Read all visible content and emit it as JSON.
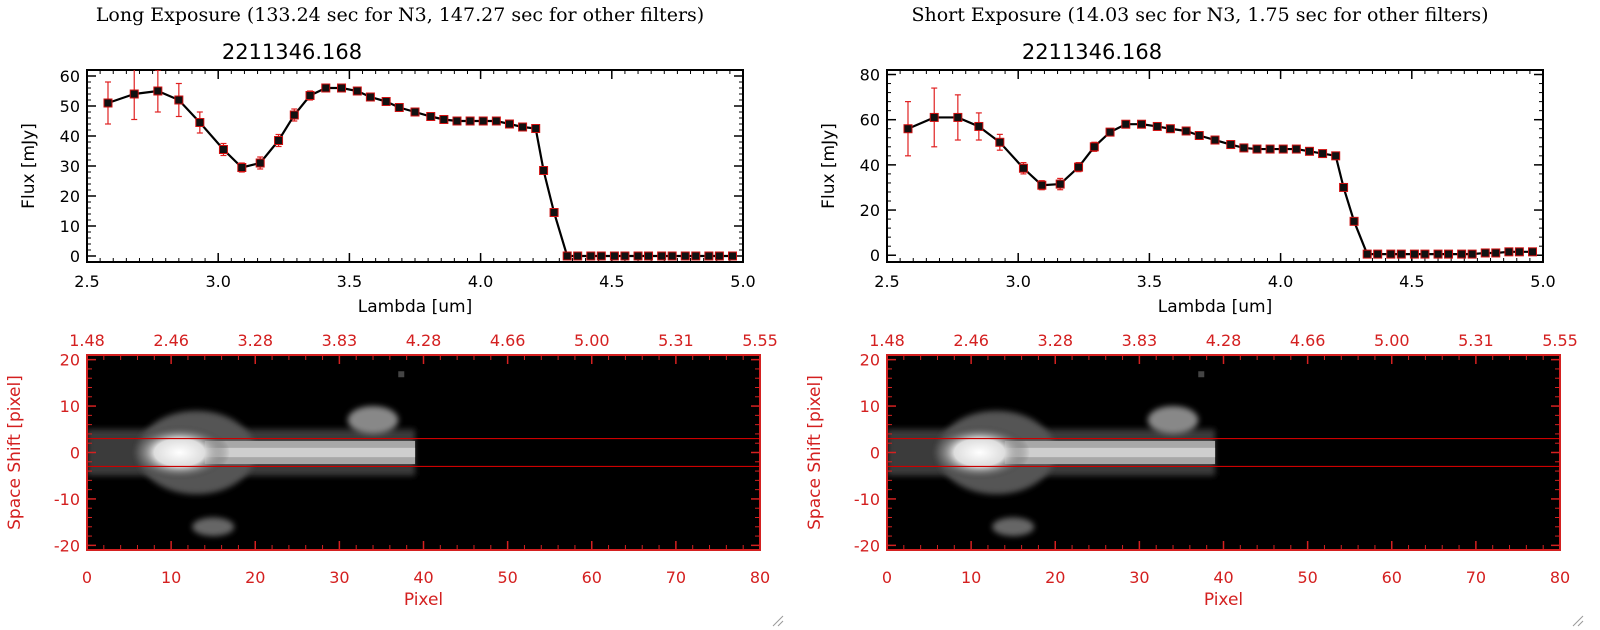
{
  "panels": [
    {
      "exposure_title": "Long Exposure (133.24 sec for N3, 147.27 sec for other filters)",
      "object_id": "2211346.168",
      "spectrum": {
        "type": "line",
        "xlabel": "Lambda [um]",
        "ylabel": "Flux [mJy]",
        "xlim": [
          2.5,
          5.0
        ],
        "ylim": [
          -2,
          62
        ],
        "x_ticks": [
          "2.5",
          "3.0",
          "3.5",
          "4.0",
          "4.5",
          "5.0"
        ],
        "y_ticks": [
          "0",
          "10",
          "20",
          "30",
          "40",
          "50",
          "60"
        ],
        "x": [
          2.58,
          2.68,
          2.77,
          2.85,
          2.93,
          3.02,
          3.09,
          3.16,
          3.23,
          3.29,
          3.35,
          3.41,
          3.47,
          3.53,
          3.58,
          3.64,
          3.69,
          3.75,
          3.81,
          3.86,
          3.91,
          3.96,
          4.01,
          4.06,
          4.11,
          4.16,
          4.21,
          4.24,
          4.28,
          4.33,
          4.37,
          4.42,
          4.46,
          4.51,
          4.55,
          4.6,
          4.64,
          4.69,
          4.73,
          4.78,
          4.82,
          4.87,
          4.91,
          4.96
        ],
        "values": [
          51,
          54,
          55,
          52,
          44.5,
          35.5,
          29.5,
          31,
          38.5,
          47,
          53.5,
          56,
          56,
          55,
          53,
          51.5,
          49.5,
          48,
          46.5,
          45.5,
          45,
          45,
          45,
          45,
          44,
          43,
          42.5,
          28.5,
          14.5,
          0,
          0,
          0,
          0,
          0,
          0,
          0,
          0,
          0,
          0,
          0,
          0,
          0,
          0,
          0
        ],
        "errors": [
          7,
          8.5,
          7,
          5.5,
          3.5,
          2,
          1.5,
          2,
          2,
          2,
          1.5,
          1,
          1,
          1,
          0.5,
          0.5,
          0.5,
          0.5,
          0.5,
          0.5,
          0.5,
          0.5,
          0.5,
          0.5,
          0.5,
          0.5,
          0.5,
          0.5,
          0.5,
          0,
          0,
          0,
          0,
          0,
          0,
          0,
          0,
          0,
          0,
          0,
          0,
          0,
          0,
          0
        ]
      },
      "image": {
        "type": "heatmap",
        "xlabel": "Pixel",
        "ylabel": "Space Shift [pixel]",
        "xlim": [
          0,
          80
        ],
        "ylim": [
          -21,
          21
        ],
        "x_ticks": [
          "0",
          "10",
          "20",
          "30",
          "40",
          "50",
          "60",
          "70",
          "80"
        ],
        "y_ticks": [
          "-20",
          "-10",
          "0",
          "10",
          "20"
        ],
        "top_ticks": [
          "1.48",
          "2.46",
          "3.28",
          "3.83",
          "4.28",
          "4.66",
          "5.00",
          "5.31",
          "5.55"
        ],
        "aperture_lines": [
          3,
          -3
        ]
      }
    },
    {
      "exposure_title": "Short Exposure (14.03 sec for N3, 1.75 sec for other filters)",
      "object_id": "2211346.168",
      "spectrum": {
        "type": "line",
        "xlabel": "Lambda [um]",
        "ylabel": "Flux [mJy]",
        "xlim": [
          2.5,
          5.0
        ],
        "ylim": [
          -3,
          82
        ],
        "x_ticks": [
          "2.5",
          "3.0",
          "3.5",
          "4.0",
          "4.5",
          "5.0"
        ],
        "y_ticks": [
          "0",
          "20",
          "40",
          "60",
          "80"
        ],
        "x": [
          2.58,
          2.68,
          2.77,
          2.85,
          2.93,
          3.02,
          3.09,
          3.16,
          3.23,
          3.29,
          3.35,
          3.41,
          3.47,
          3.53,
          3.58,
          3.64,
          3.69,
          3.75,
          3.81,
          3.86,
          3.91,
          3.96,
          4.01,
          4.06,
          4.11,
          4.16,
          4.21,
          4.24,
          4.28,
          4.33,
          4.37,
          4.42,
          4.46,
          4.51,
          4.55,
          4.6,
          4.64,
          4.69,
          4.73,
          4.78,
          4.82,
          4.87,
          4.91,
          4.96
        ],
        "values": [
          56,
          61,
          61,
          57,
          50,
          38.5,
          31,
          31.5,
          39,
          48,
          54.5,
          58,
          58,
          57,
          56,
          55,
          53,
          51,
          49,
          47.5,
          47,
          47,
          47,
          47,
          46,
          45,
          44,
          30,
          15,
          0.5,
          0.5,
          0.5,
          0.5,
          0.5,
          0.5,
          0.5,
          0.5,
          0.5,
          0.5,
          1,
          1,
          1.5,
          1.5,
          1.5
        ],
        "errors": [
          12,
          13,
          10,
          6,
          3.5,
          2.5,
          2,
          2.5,
          2,
          2,
          1.5,
          1,
          1,
          1,
          0.5,
          0.5,
          0.5,
          0.5,
          0.5,
          0.5,
          0.5,
          0.5,
          0.5,
          0.5,
          0.5,
          0.5,
          0.5,
          0.5,
          0.5,
          0.5,
          0.5,
          0.5,
          0.5,
          0.5,
          0.5,
          0.5,
          0.5,
          0.5,
          0.5,
          0.5,
          0.5,
          0.5,
          0.5,
          0.5
        ]
      },
      "image": {
        "type": "heatmap",
        "xlabel": "Pixel",
        "ylabel": "Space Shift [pixel]",
        "xlim": [
          0,
          80
        ],
        "ylim": [
          -21,
          21
        ],
        "x_ticks": [
          "0",
          "10",
          "20",
          "30",
          "40",
          "50",
          "60",
          "70",
          "80"
        ],
        "y_ticks": [
          "-20",
          "-10",
          "0",
          "10",
          "20"
        ],
        "top_ticks": [
          "1.48",
          "2.46",
          "3.28",
          "3.83",
          "4.28",
          "4.66",
          "5.00",
          "5.31",
          "5.55"
        ],
        "aperture_lines": [
          3,
          -3
        ]
      }
    }
  ],
  "colors": {
    "line": "#000000",
    "marker": "#d01010",
    "error_bar": "#e02020",
    "image_axis": "#d42020",
    "image_background": "#000000",
    "aperture_line": "#cc0000"
  }
}
